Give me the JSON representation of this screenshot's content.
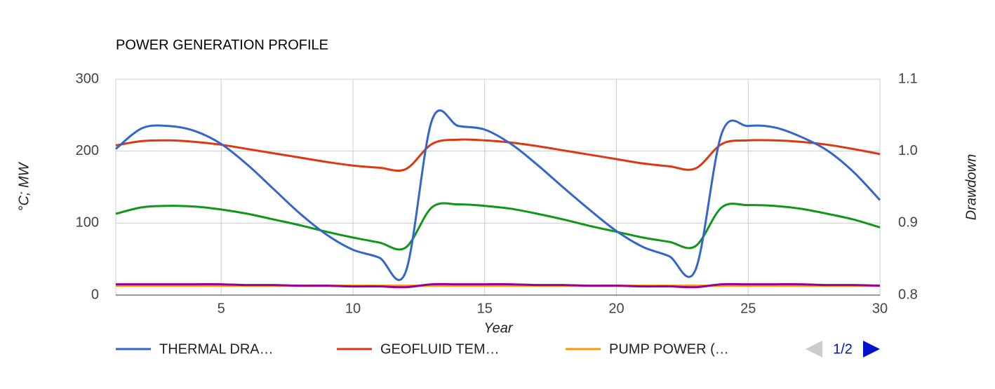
{
  "chart_data": {
    "type": "line",
    "title": "POWER GENERATION PROFILE",
    "x_label": "Year",
    "y_label": "°C; MW",
    "y2_label": "Drawdown",
    "x": [
      1,
      2,
      3,
      4,
      5,
      6,
      7,
      8,
      9,
      10,
      11,
      12,
      13,
      14,
      15,
      16,
      17,
      18,
      19,
      20,
      21,
      22,
      23,
      24,
      25,
      26,
      27,
      28,
      29,
      30
    ],
    "xlim": [
      1,
      30
    ],
    "xticks": [
      5,
      10,
      15,
      20,
      25,
      30
    ],
    "ylim": [
      0,
      300
    ],
    "yticks": [
      0,
      100,
      200,
      300
    ],
    "y2lim": [
      0.8,
      1.1
    ],
    "y2ticks": [
      0.8,
      0.9,
      {
        "value": 1,
        "label": "1.0"
      },
      {
        "value": 1.1,
        "label": "1.1"
      }
    ],
    "grid": true,
    "legend_position": "bottom",
    "legend_page": "1/2",
    "series": [
      {
        "name": "THERMAL DRA…",
        "color": "#3366cc",
        "axis": "y2",
        "values": [
          1.003,
          1.032,
          1.035,
          1.028,
          1.01,
          0.981,
          0.947,
          0.913,
          0.884,
          0.863,
          0.852,
          0.832,
          1.043,
          1.035,
          1.03,
          1.01,
          0.981,
          0.949,
          0.918,
          0.889,
          0.867,
          0.854,
          0.835,
          1.025,
          1.035,
          1.033,
          1.02,
          1.001,
          0.971,
          0.932
        ]
      },
      {
        "name": "GEOFLUID TEM…",
        "color": "#dc3912",
        "values": [
          208,
          214,
          215,
          213,
          209,
          203,
          197,
          191,
          185,
          180,
          177,
          175,
          210,
          216,
          215,
          212,
          207,
          201,
          195,
          189,
          183,
          179,
          176,
          210,
          215,
          215,
          213,
          209,
          203,
          196
        ]
      },
      {
        "name": "PUMP POWER (…",
        "color": "#ff9900",
        "values": [
          13,
          13,
          13,
          13,
          13,
          13,
          13,
          13,
          13,
          13,
          13,
          13,
          13,
          13,
          13,
          13,
          13,
          13,
          13,
          13,
          13,
          13,
          13,
          13,
          13,
          13,
          13,
          13,
          13,
          13
        ]
      },
      {
        "color": "#109618",
        "values": [
          113,
          122,
          124,
          123,
          119,
          113,
          105,
          97,
          88,
          80,
          73,
          66,
          122,
          126,
          124,
          120,
          113,
          105,
          96,
          88,
          80,
          74,
          68,
          122,
          125,
          124,
          120,
          113,
          105,
          94
        ]
      },
      {
        "color": "#990099",
        "values": [
          15,
          15,
          15,
          15,
          15,
          14,
          14,
          13,
          13,
          12,
          12,
          11,
          15,
          15,
          15,
          15,
          14,
          14,
          13,
          13,
          12,
          12,
          11,
          15,
          15,
          15,
          15,
          14,
          14,
          13
        ]
      }
    ]
  }
}
